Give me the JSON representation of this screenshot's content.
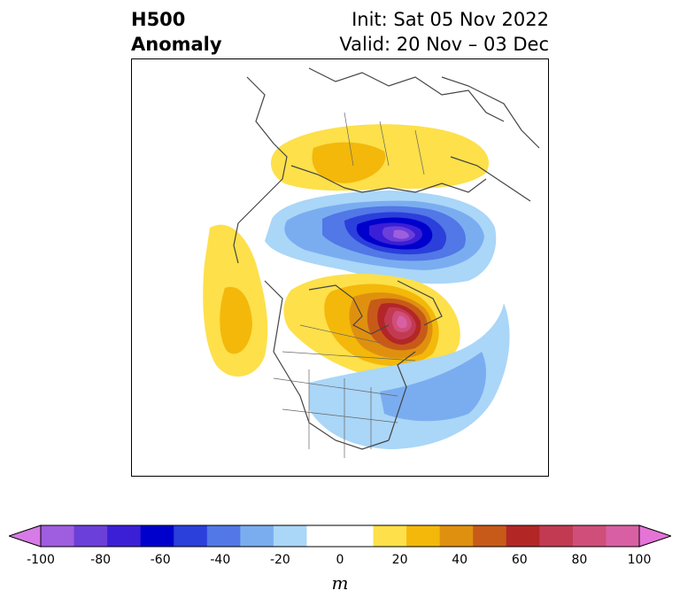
{
  "title": {
    "left_line1": "H500",
    "left_line2": "Anomaly",
    "right_line1": "Init: Sat 05 Nov 2022",
    "right_line2": "Valid: 20 Nov – 03 Dec"
  },
  "colorbar": {
    "unit": "m",
    "tick_labels": [
      "-100",
      "-80",
      "-60",
      "-40",
      "-20",
      "0",
      "20",
      "40",
      "60",
      "80",
      "100"
    ],
    "colors": [
      "#d77be6",
      "#9f5ddf",
      "#6b3fd9",
      "#3b1fd6",
      "#0000cc",
      "#2b3fdb",
      "#5277e6",
      "#7aadf0",
      "#aad6f8",
      "#ffffff",
      "#ffffff",
      "#fde04a",
      "#f3b80a",
      "#e0900f",
      "#c75a18",
      "#b32626",
      "#c23a52",
      "#cf4f7a",
      "#d95fa4",
      "#e574d6"
    ]
  },
  "map": {
    "features": [
      "anomaly-positive-north-atlantic-europe",
      "anomaly-negative-siberia-arctic",
      "anomaly-positive-alaska-canada",
      "anomaly-negative-eastern-us-atlantic"
    ]
  }
}
